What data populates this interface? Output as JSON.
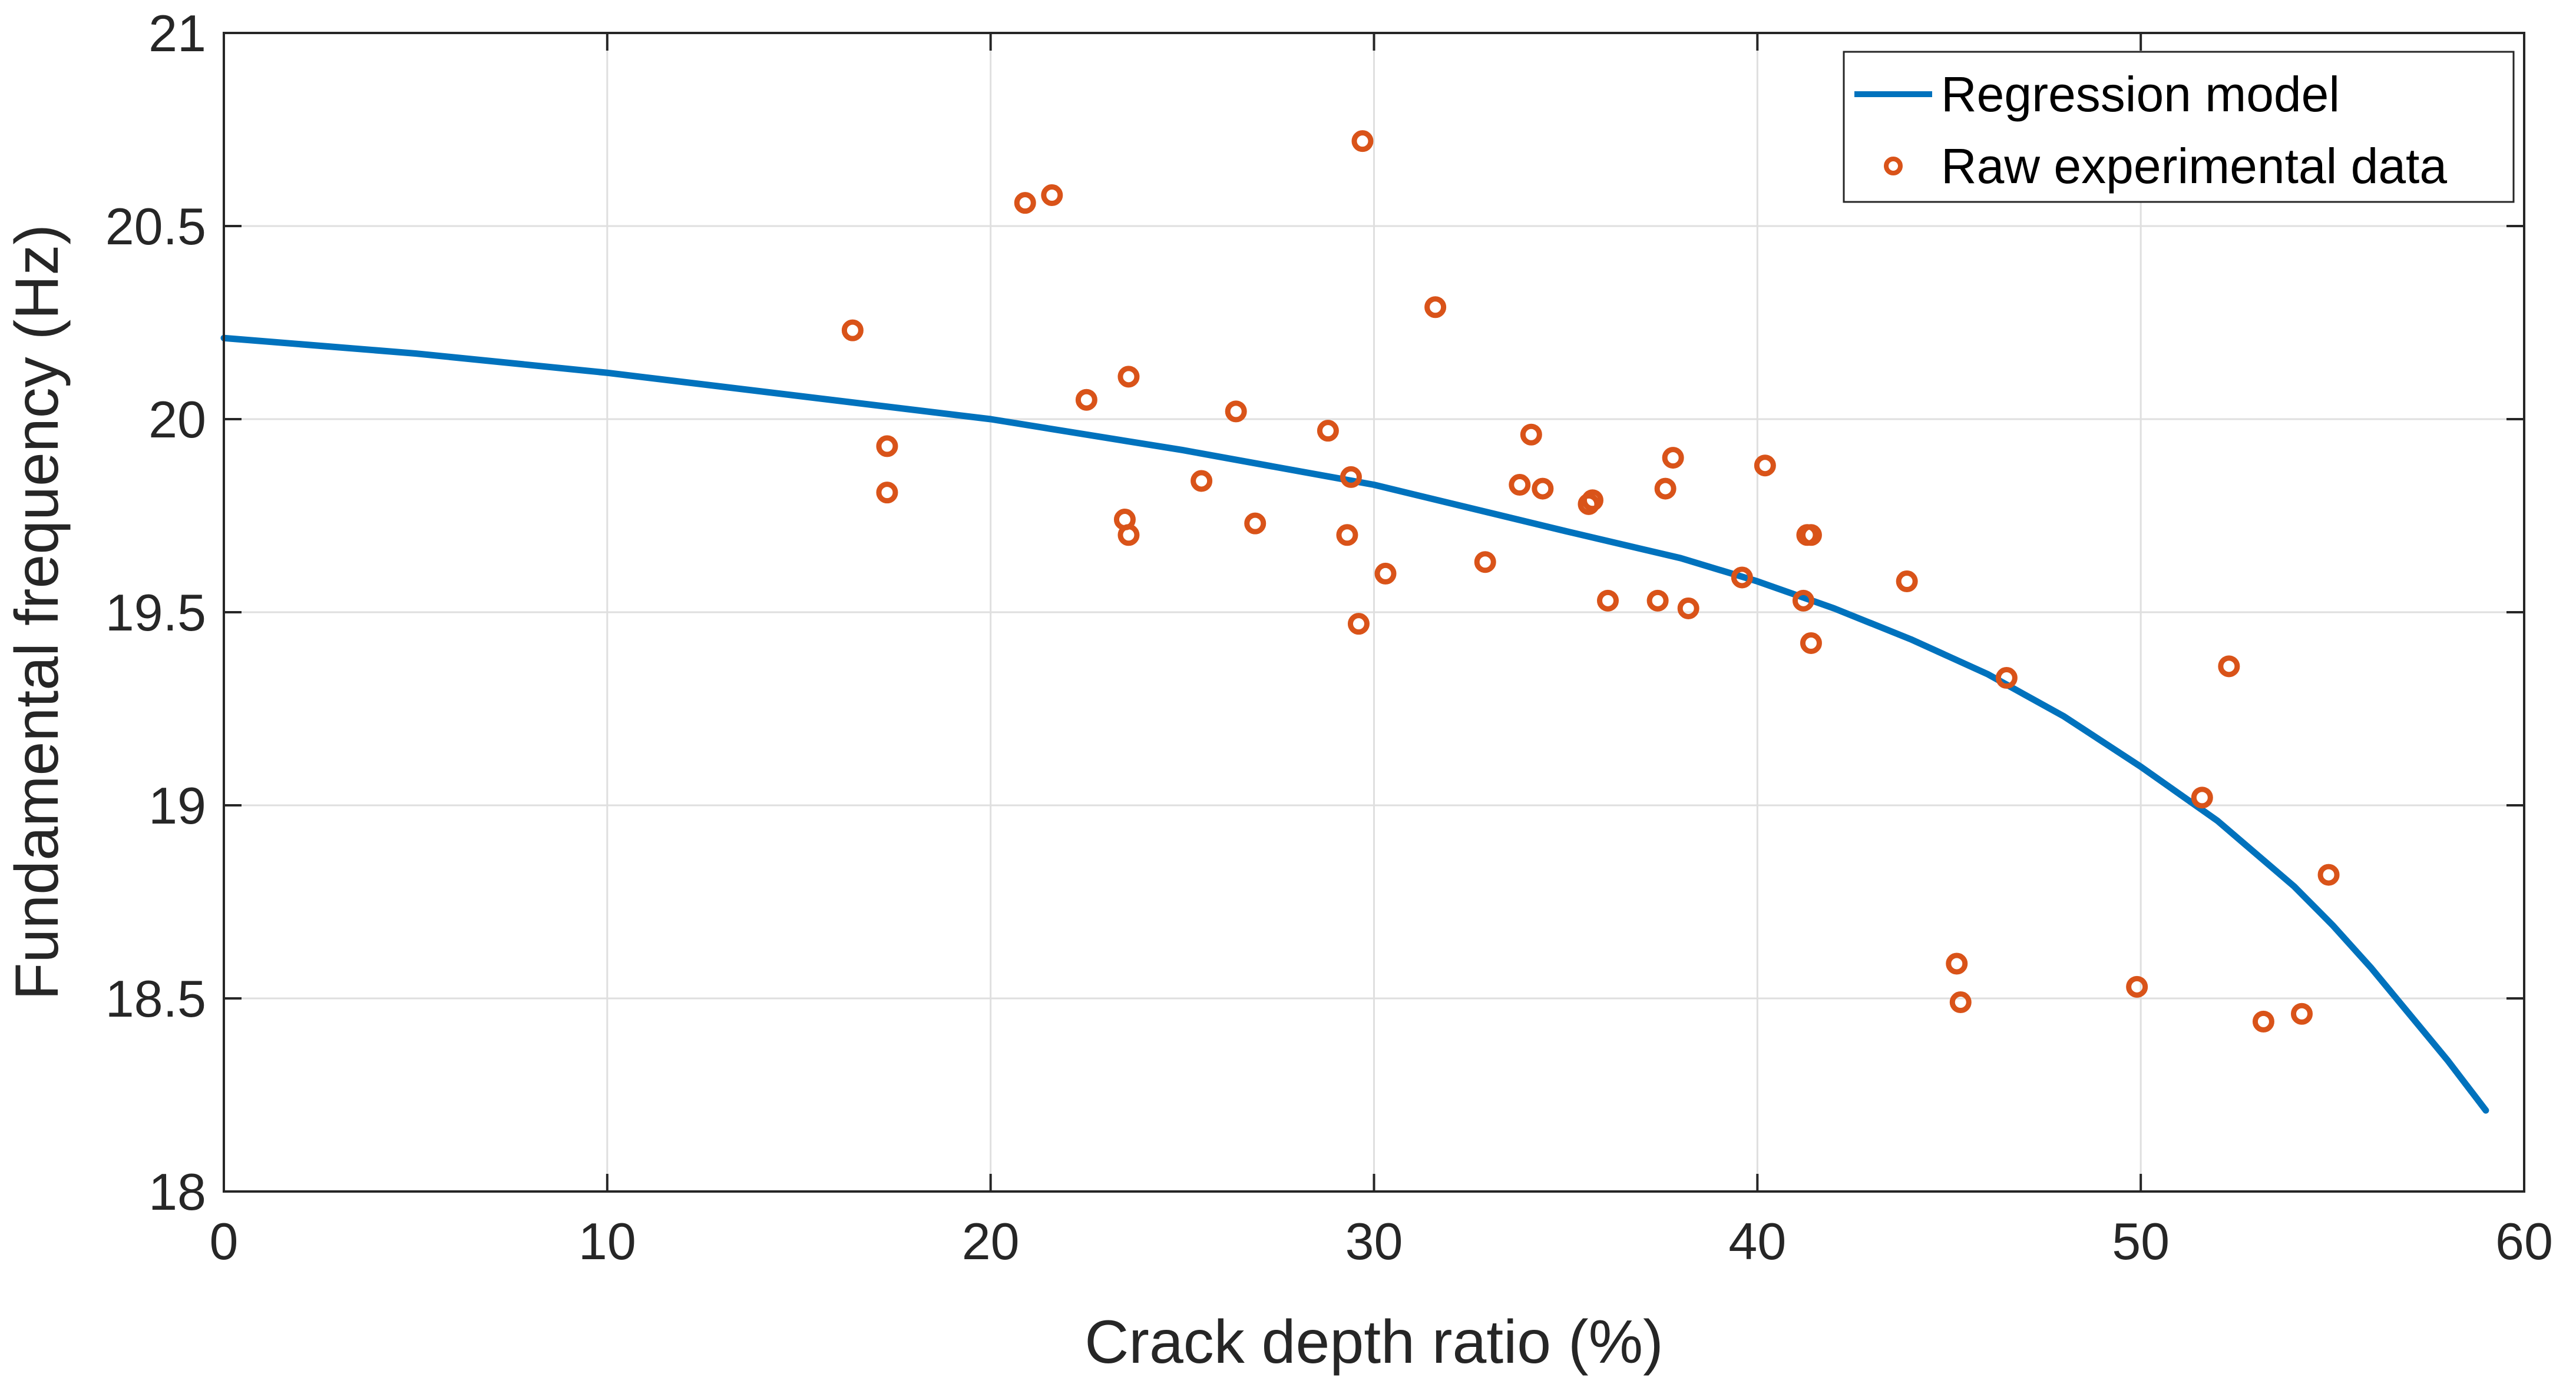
{
  "chart_data": {
    "type": "scatter",
    "xlabel": "Crack depth ratio (%)",
    "ylabel": "Fundamental frequency (Hz)",
    "xlim": [
      0,
      60
    ],
    "ylim": [
      18,
      21
    ],
    "xticks": [
      "0",
      "10",
      "20",
      "30",
      "40",
      "50",
      "60"
    ],
    "yticks": [
      "18",
      "18.5",
      "19",
      "19.5",
      "20",
      "20.5",
      "21"
    ],
    "grid": true,
    "legend_position": "top-right",
    "colors": {
      "regression": "#0072BD",
      "raw": "#D95319"
    },
    "series": [
      {
        "name": "Regression model",
        "kind": "line",
        "x": [
          0,
          5,
          10,
          15,
          20,
          25,
          30,
          35,
          38,
          40,
          42,
          44,
          46,
          48,
          50,
          52,
          54,
          55,
          56,
          57,
          58,
          59
        ],
        "y": [
          20.21,
          20.17,
          20.12,
          20.06,
          20.0,
          19.92,
          19.83,
          19.71,
          19.64,
          19.58,
          19.51,
          19.43,
          19.34,
          19.23,
          19.1,
          18.96,
          18.79,
          18.69,
          18.58,
          18.46,
          18.34,
          18.21
        ]
      },
      {
        "name": "Raw experimental data",
        "kind": "scatter",
        "x": [
          16.4,
          17.3,
          17.3,
          20.9,
          21.6,
          22.5,
          23.5,
          23.6,
          23.6,
          25.5,
          26.4,
          26.9,
          28.8,
          29.3,
          29.4,
          29.6,
          29.7,
          30.3,
          31.6,
          32.9,
          33.8,
          34.1,
          34.4,
          35.6,
          35.7,
          36.1,
          37.4,
          37.6,
          37.8,
          38.2,
          39.6,
          40.2,
          41.2,
          41.3,
          41.4,
          41.4,
          43.9,
          45.2,
          45.3,
          46.5,
          49.9,
          51.6,
          52.3,
          53.2,
          54.2,
          54.9
        ],
        "y": [
          20.23,
          19.93,
          19.81,
          20.56,
          20.58,
          20.05,
          19.74,
          19.7,
          20.11,
          19.84,
          20.02,
          19.73,
          19.97,
          19.7,
          19.85,
          19.47,
          20.72,
          19.6,
          20.29,
          19.63,
          19.83,
          19.96,
          19.82,
          19.78,
          19.79,
          19.53,
          19.53,
          19.82,
          19.9,
          19.51,
          19.59,
          19.88,
          19.53,
          19.7,
          19.42,
          19.7,
          19.58,
          18.59,
          18.49,
          19.33,
          18.53,
          19.02,
          19.36,
          18.44,
          18.46,
          18.82
        ]
      }
    ]
  }
}
